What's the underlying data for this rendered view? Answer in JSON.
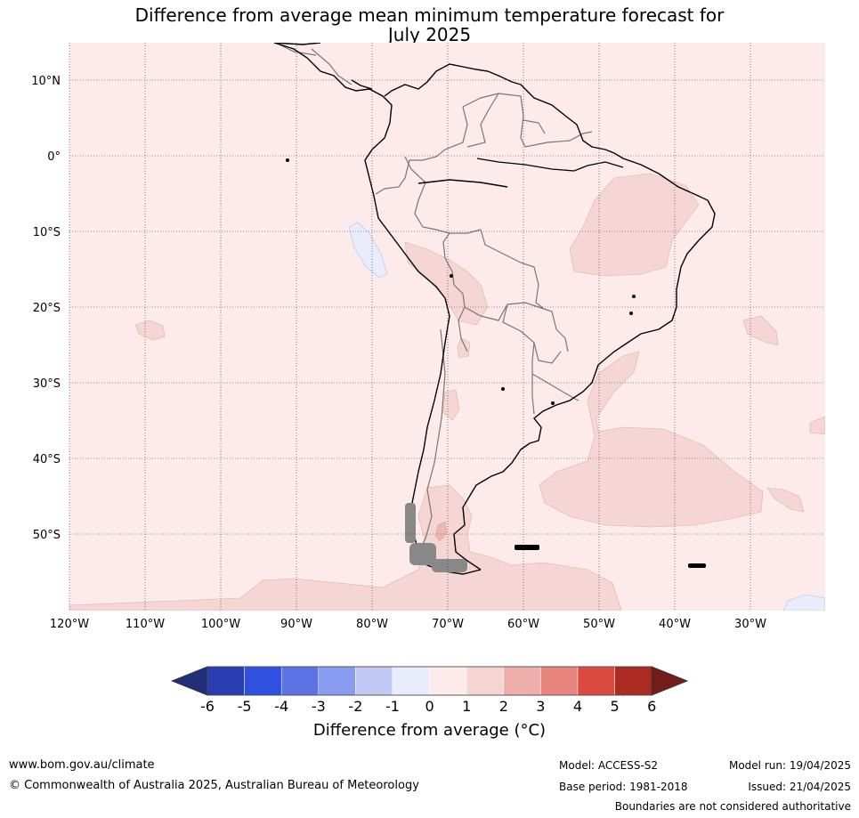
{
  "title_line1": "Difference from average mean minimum temperature forecast for",
  "title_line2": "July 2025",
  "lat_labels": [
    "10°N",
    "0°",
    "10°S",
    "20°S",
    "30°S",
    "40°S",
    "50°S"
  ],
  "lon_labels": [
    "120°W",
    "110°W",
    "100°W",
    "90°W",
    "80°W",
    "70°W",
    "60°W",
    "50°W",
    "40°W",
    "30°W"
  ],
  "colorbar": {
    "ticks": [
      "-6",
      "-5",
      "-4",
      "-3",
      "-2",
      "-1",
      "0",
      "1",
      "2",
      "3",
      "4",
      "5",
      "6"
    ],
    "colors": [
      "#1f2f7a",
      "#2a3eb1",
      "#3050e0",
      "#5c72e6",
      "#8a9cf0",
      "#c2c9f5",
      "#e9ecfb",
      "#fcebea",
      "#f5d4d2",
      "#eeafab",
      "#e8857f",
      "#dc4a3f",
      "#ab2b21",
      "#731d1a"
    ],
    "label": "Difference from average (°C)"
  },
  "map_colors": {
    "ocean_land": "#fcebea",
    "warm_1_2": "#f5d6d4",
    "warm_2_3": "#eeb5b1",
    "cool": "#e9ecfb"
  },
  "footer": {
    "url": "www.bom.gov.au/climate",
    "copyright": "© Commonwealth of Australia 2025, Australian Bureau of Meteorology",
    "model": "Model: ACCESS-S2",
    "base_period": "Base period: 1981-2018",
    "model_run": "Model run: 19/04/2025",
    "issued": "Issued: 21/04/2025",
    "disclaimer": "Boundaries are not considered authoritative"
  }
}
